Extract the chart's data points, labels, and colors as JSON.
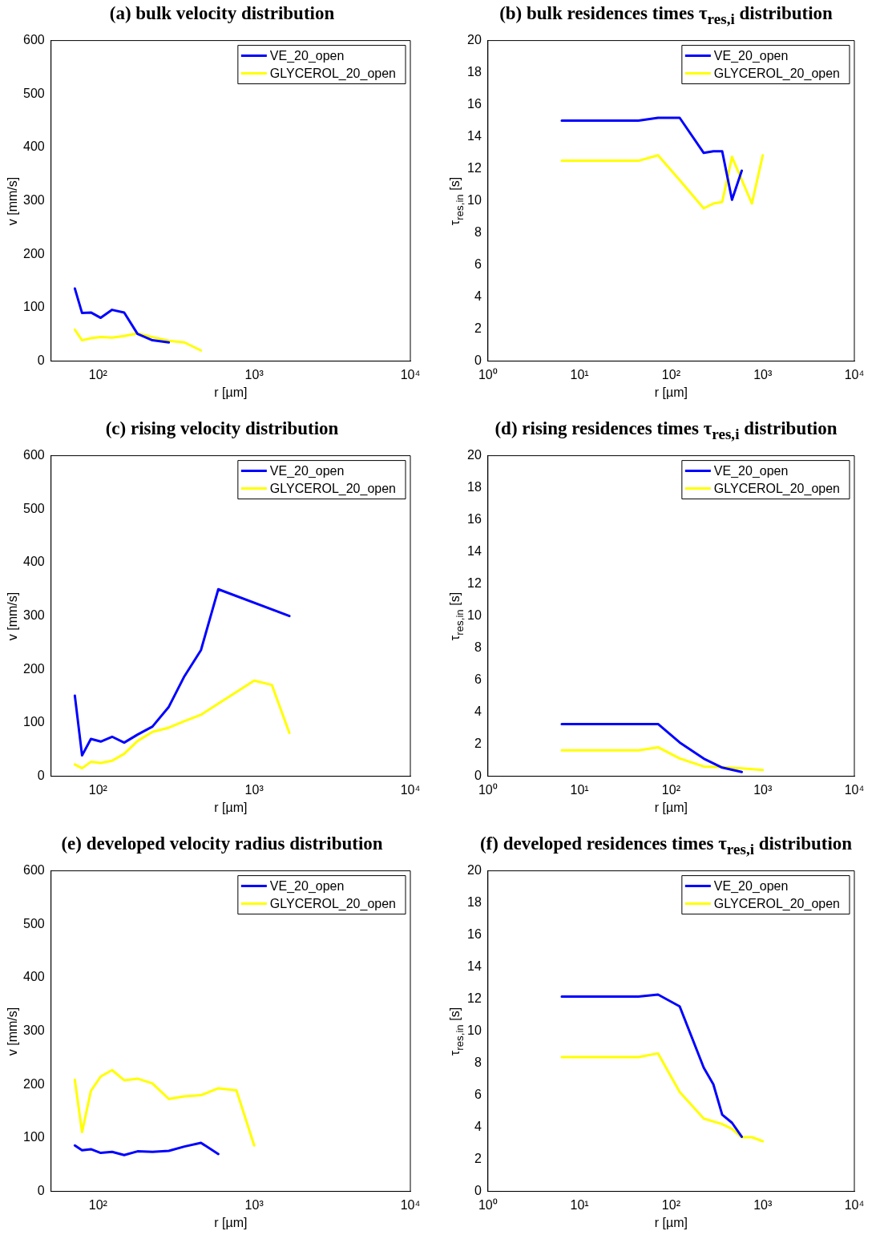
{
  "chart_data": [
    {
      "type": "line",
      "title": "(a) bulk velocity distribution",
      "xlabel": "r [µm]",
      "ylabel": "v [mm/s]",
      "log": "x",
      "legend": "top right",
      "xlim": [
        50,
        10000
      ],
      "xticks": [
        {
          "value": 100,
          "label": "10²"
        },
        {
          "value": 1000,
          "label": "10³"
        },
        {
          "value": 10000,
          "label": "10⁴"
        }
      ],
      "ylim": [
        0,
        600
      ],
      "yticks": [
        0,
        100,
        200,
        300,
        400,
        500,
        600
      ],
      "series": [
        {
          "name": "VE_20_open",
          "color": "#0000ff",
          "x": [
            71,
            79,
            90,
            104,
            123,
            147,
            179,
            223,
            284
          ],
          "values": [
            136,
            90,
            91,
            81,
            96,
            91,
            51,
            39,
            35
          ]
        },
        {
          "name": "GLYCEROL_20_open",
          "color": "#ffff00",
          "x": [
            71,
            79,
            90,
            104,
            123,
            147,
            179,
            223,
            284,
            357,
            456
          ],
          "values": [
            59,
            39,
            43,
            45,
            44,
            47,
            52,
            45,
            38,
            35,
            20
          ]
        }
      ]
    },
    {
      "type": "line",
      "title": "(b) bulk residences times τ$_{res,i}$ distribution",
      "xlabel": "r [µm]",
      "ylabel": "τ$_{res,in}$ [s]",
      "log": "x",
      "legend": "top right",
      "xlim": [
        1,
        10000
      ],
      "xticks": [
        {
          "value": 1,
          "label": "10⁰"
        },
        {
          "value": 10,
          "label": "10¹"
        },
        {
          "value": 100,
          "label": "10²"
        },
        {
          "value": 1000,
          "label": "10³"
        },
        {
          "value": 10000,
          "label": "10⁴"
        }
      ],
      "ylim": [
        0,
        20
      ],
      "yticks": [
        0,
        2,
        4,
        6,
        8,
        10,
        12,
        14,
        16,
        18,
        20
      ],
      "series": [
        {
          "name": "VE_20_open",
          "color": "#0000ff",
          "x": [
            6.4,
            44,
            72,
            124,
            227,
            289,
            361,
            462,
            590
          ],
          "values": [
            15.0,
            15.0,
            15.18,
            15.18,
            12.99,
            13.09,
            13.09,
            10.07,
            11.88
          ]
        },
        {
          "name": "GLYCEROL_20_open",
          "color": "#ffff00",
          "x": [
            6.4,
            44,
            72,
            124,
            227,
            289,
            361,
            462,
            762,
            1000
          ],
          "values": [
            12.5,
            12.5,
            12.84,
            11.29,
            9.53,
            9.83,
            9.93,
            12.74,
            9.83,
            12.84
          ]
        }
      ]
    },
    {
      "type": "line",
      "title": "(c) rising velocity distribution",
      "xlabel": "r [µm]",
      "ylabel": "v [mm/s]",
      "log": "x",
      "legend": "top right",
      "xlim": [
        50,
        10000
      ],
      "xticks": [
        {
          "value": 100,
          "label": "10²"
        },
        {
          "value": 1000,
          "label": "10³"
        },
        {
          "value": 10000,
          "label": "10⁴"
        }
      ],
      "ylim": [
        0,
        600
      ],
      "yticks": [
        0,
        100,
        200,
        300,
        400,
        500,
        600
      ],
      "series": [
        {
          "name": "VE_20_open",
          "color": "#0000ff",
          "x": [
            71,
            79,
            90,
            104,
            123,
            147,
            179,
            223,
            284,
            357,
            456,
            589,
            1680
          ],
          "values": [
            151,
            39,
            70,
            65,
            74,
            63,
            78,
            93,
            130,
            187,
            236,
            350,
            300
          ]
        },
        {
          "name": "GLYCEROL_20_open",
          "color": "#ffff00",
          "x": [
            71,
            79,
            90,
            104,
            123,
            147,
            179,
            223,
            284,
            357,
            456,
            1000,
            1297,
            1680
          ],
          "values": [
            22,
            15,
            27,
            25,
            29,
            42,
            66,
            83,
            91,
            103,
            115,
            179,
            171,
            81
          ]
        }
      ]
    },
    {
      "type": "line",
      "title": "(d) rising residences times τ$_{res,i}$ distribution",
      "xlabel": "r [µm]",
      "ylabel": "τ$_{res,in}$ [s]",
      "log": "x",
      "legend": "top right",
      "xlim": [
        1,
        10000
      ],
      "xticks": [
        {
          "value": 1,
          "label": "10⁰"
        },
        {
          "value": 10,
          "label": "10¹"
        },
        {
          "value": 100,
          "label": "10²"
        },
        {
          "value": 1000,
          "label": "10³"
        },
        {
          "value": 10000,
          "label": "10⁴"
        }
      ],
      "ylim": [
        0,
        20
      ],
      "yticks": [
        0,
        2,
        4,
        6,
        8,
        10,
        12,
        14,
        16,
        18,
        20
      ],
      "series": [
        {
          "name": "VE_20_open",
          "color": "#0000ff",
          "x": [
            6.4,
            44,
            72,
            124,
            227,
            361,
            590
          ],
          "values": [
            3.26,
            3.26,
            3.26,
            2.11,
            1.1,
            0.54,
            0.27
          ]
        },
        {
          "name": "GLYCEROL_20_open",
          "color": "#ffff00",
          "x": [
            6.4,
            44,
            72,
            124,
            227,
            361,
            590,
            1000
          ],
          "values": [
            1.62,
            1.62,
            1.81,
            1.11,
            0.61,
            0.57,
            0.49,
            0.39
          ]
        }
      ]
    },
    {
      "type": "line",
      "title": "(e) developed velocity radius distribution",
      "xlabel": "r [µm]",
      "ylabel": "v [mm/s]",
      "log": "x",
      "legend": "top right",
      "xlim": [
        50,
        10000
      ],
      "xticks": [
        {
          "value": 100,
          "label": "10²"
        },
        {
          "value": 1000,
          "label": "10³"
        },
        {
          "value": 10000,
          "label": "10⁴"
        }
      ],
      "ylim": [
        0,
        600
      ],
      "yticks": [
        0,
        100,
        200,
        300,
        400,
        500,
        600
      ],
      "series": [
        {
          "name": "VE_20_open",
          "color": "#0000ff",
          "x": [
            71,
            79,
            90,
            104,
            123,
            147,
            179,
            223,
            284,
            357,
            456,
            589
          ],
          "values": [
            86,
            77,
            79,
            72,
            74,
            68,
            75,
            74,
            76,
            84,
            91,
            70
          ]
        },
        {
          "name": "GLYCEROL_20_open",
          "color": "#ffff00",
          "x": [
            71,
            79,
            90,
            104,
            123,
            147,
            179,
            223,
            284,
            357,
            456,
            589,
            770,
            1000
          ],
          "values": [
            209,
            111,
            188,
            215,
            227,
            208,
            211,
            202,
            173,
            178,
            180,
            193,
            189,
            86
          ]
        }
      ]
    },
    {
      "type": "line",
      "title": "(f) developed residences times τ$_{res,i}$ distribution",
      "xlabel": "r [µm]",
      "ylabel": "τ$_{res,in}$ [s]",
      "log": "x",
      "legend": "top right",
      "xlim": [
        1,
        10000
      ],
      "xticks": [
        {
          "value": 1,
          "label": "10⁰"
        },
        {
          "value": 10,
          "label": "10¹"
        },
        {
          "value": 100,
          "label": "10²"
        },
        {
          "value": 1000,
          "label": "10³"
        },
        {
          "value": 10000,
          "label": "10⁴"
        }
      ],
      "ylim": [
        0,
        20
      ],
      "yticks": [
        0,
        2,
        4,
        6,
        8,
        10,
        12,
        14,
        16,
        18,
        20
      ],
      "series": [
        {
          "name": "VE_20_open",
          "color": "#0000ff",
          "x": [
            6.4,
            44,
            72,
            124,
            227,
            289,
            361,
            462,
            590
          ],
          "values": [
            12.16,
            12.16,
            12.28,
            11.54,
            7.72,
            6.68,
            4.79,
            4.28,
            3.41
          ]
        },
        {
          "name": "GLYCEROL_20_open",
          "color": "#ffff00",
          "x": [
            6.4,
            44,
            72,
            124,
            227,
            361,
            462,
            590,
            762,
            1000
          ],
          "values": [
            8.38,
            8.38,
            8.61,
            6.2,
            4.54,
            4.2,
            3.9,
            3.38,
            3.38,
            3.13
          ]
        }
      ]
    }
  ]
}
